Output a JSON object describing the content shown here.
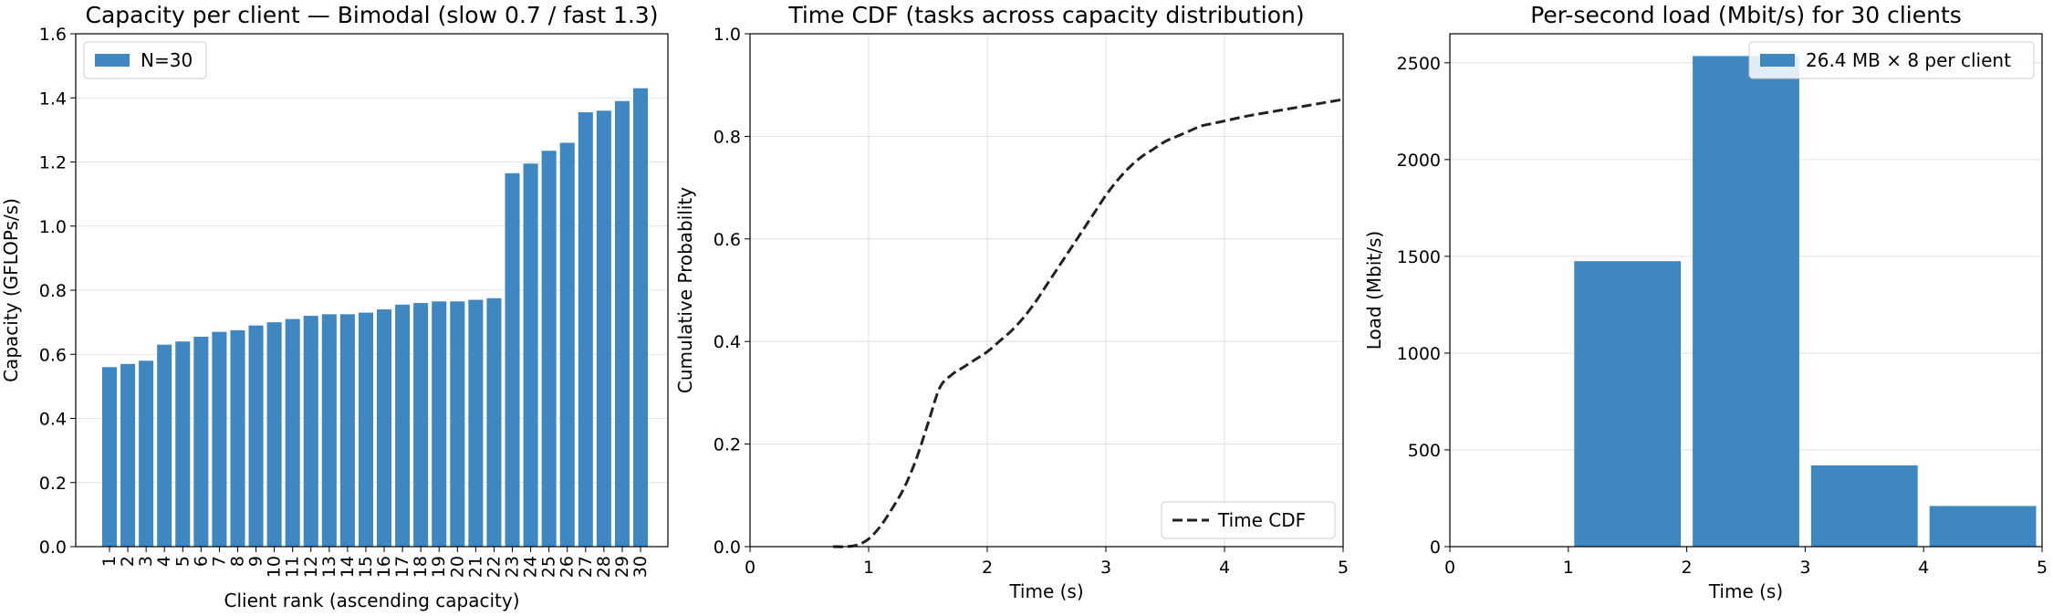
{
  "chart_data": [
    {
      "type": "bar",
      "title": "Capacity per client — Bimodal (slow 0.7 / fast 1.3)",
      "xlabel": "Client rank (ascending capacity)",
      "ylabel": "Capacity (GFLOPs/s)",
      "ylim": [
        0,
        1.6
      ],
      "yticks": [
        "0.0",
        "0.2",
        "0.4",
        "0.6",
        "0.8",
        "1.0",
        "1.2",
        "1.4",
        "1.6"
      ],
      "categories": [
        "1",
        "2",
        "3",
        "4",
        "5",
        "6",
        "7",
        "8",
        "9",
        "10",
        "11",
        "12",
        "13",
        "14",
        "15",
        "16",
        "17",
        "18",
        "19",
        "20",
        "21",
        "22",
        "23",
        "24",
        "25",
        "26",
        "27",
        "28",
        "29",
        "30"
      ],
      "series": [
        {
          "name": "N=30",
          "values": [
            0.56,
            0.57,
            0.58,
            0.63,
            0.64,
            0.655,
            0.67,
            0.675,
            0.69,
            0.7,
            0.71,
            0.72,
            0.725,
            0.725,
            0.73,
            0.74,
            0.755,
            0.76,
            0.765,
            0.765,
            0.77,
            0.775,
            1.165,
            1.195,
            1.235,
            1.26,
            1.355,
            1.36,
            1.39,
            1.43
          ]
        }
      ],
      "grid": "y",
      "legend": "upper-left",
      "color": "#3f87c0"
    },
    {
      "type": "line",
      "title": "Time CDF (tasks across capacity distribution)",
      "xlabel": "Time (s)",
      "ylabel": "Cumulative Probability",
      "xlim": [
        0,
        5
      ],
      "ylim": [
        0,
        1.0
      ],
      "xticks": [
        "0",
        "1",
        "2",
        "3",
        "4",
        "5"
      ],
      "yticks": [
        "0.0",
        "0.2",
        "0.4",
        "0.6",
        "0.8",
        "1.0"
      ],
      "series": [
        {
          "name": "Time CDF",
          "x": [
            0.7,
            0.8,
            0.9,
            1.0,
            1.1,
            1.2,
            1.3,
            1.4,
            1.5,
            1.6,
            1.7,
            1.8,
            1.9,
            2.0,
            2.1,
            2.2,
            2.3,
            2.4,
            2.5,
            2.6,
            2.7,
            2.8,
            2.9,
            3.0,
            3.1,
            3.2,
            3.3,
            3.4,
            3.5,
            3.6,
            3.7,
            3.8,
            3.9,
            4.0,
            4.2,
            4.4,
            4.6,
            4.8,
            5.0
          ],
          "y": [
            0.0,
            0.0,
            0.003,
            0.015,
            0.04,
            0.075,
            0.115,
            0.17,
            0.24,
            0.31,
            0.335,
            0.35,
            0.365,
            0.38,
            0.4,
            0.42,
            0.445,
            0.475,
            0.51,
            0.545,
            0.58,
            0.615,
            0.65,
            0.685,
            0.715,
            0.74,
            0.76,
            0.775,
            0.79,
            0.8,
            0.81,
            0.82,
            0.825,
            0.83,
            0.84,
            0.848,
            0.856,
            0.864,
            0.872
          ]
        }
      ],
      "grid": "both",
      "legend": "lower-right",
      "color": "#222222"
    },
    {
      "type": "bar",
      "title": "Per-second load (Mbit/s) for 30 clients",
      "xlabel": "Time (s)",
      "ylabel": "Load (Mbit/s)",
      "xlim": [
        0,
        5
      ],
      "ylim": [
        0,
        2650
      ],
      "xticks": [
        "0",
        "1",
        "2",
        "3",
        "4",
        "5"
      ],
      "yticks": [
        "0",
        "500",
        "1000",
        "1500",
        "2000",
        "2500"
      ],
      "bins": [
        {
          "start": 0,
          "end": 1,
          "value": 0
        },
        {
          "start": 1,
          "end": 2,
          "value": 1475
        },
        {
          "start": 2,
          "end": 3,
          "value": 2535
        },
        {
          "start": 3,
          "end": 4,
          "value": 420
        },
        {
          "start": 4,
          "end": 5,
          "value": 210
        }
      ],
      "series": [
        {
          "name": "26.4 MB × 8 per client"
        }
      ],
      "grid": "y",
      "legend": "upper-right",
      "color": "#3f87c0"
    }
  ]
}
